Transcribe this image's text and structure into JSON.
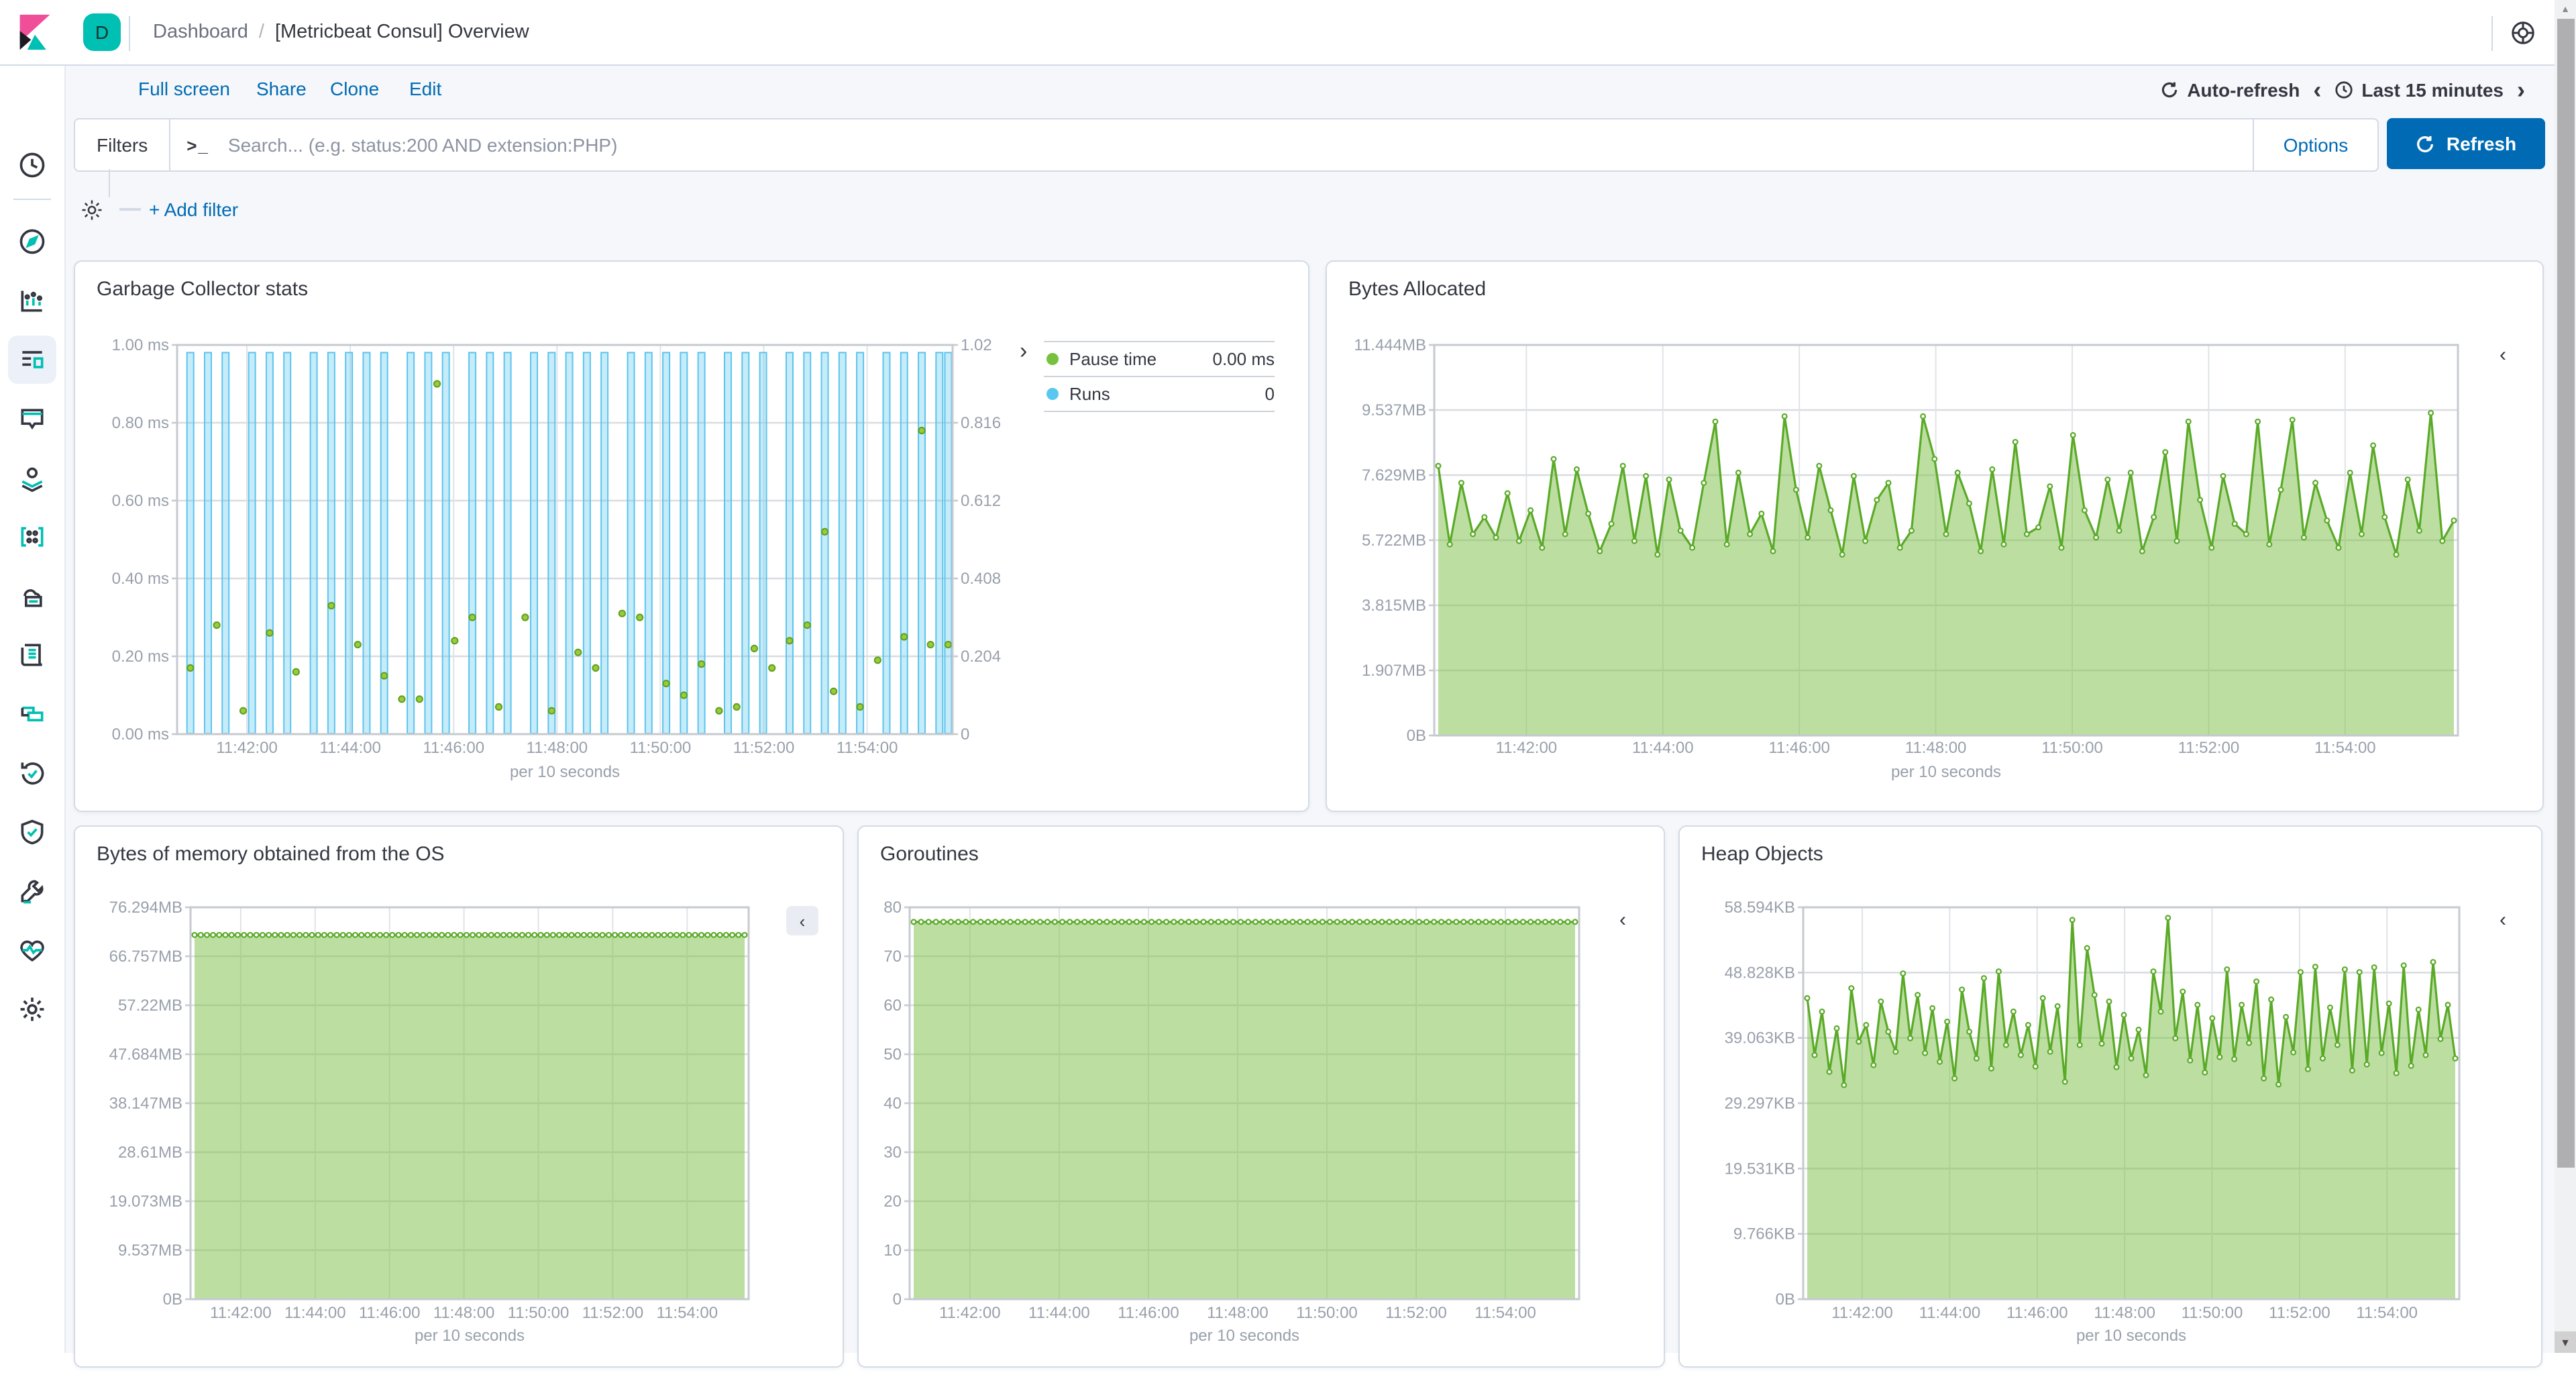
{
  "header": {
    "badge": "D",
    "breadcrumb": {
      "section": "Dashboard",
      "separator": "/",
      "current": "[Metricbeat Consul] Overview"
    }
  },
  "sidebar": {
    "items": [
      {
        "name": "recently-viewed",
        "icon": "clock"
      },
      {
        "name": "discover",
        "icon": "compass"
      },
      {
        "name": "visualize",
        "icon": "bar-chart"
      },
      {
        "name": "dashboard",
        "icon": "dashboard-grid",
        "selected": true
      },
      {
        "name": "canvas",
        "icon": "canvas-frame"
      },
      {
        "name": "maps",
        "icon": "map-pin-layers"
      },
      {
        "name": "machine-learning",
        "icon": "ml-dots"
      },
      {
        "name": "infrastructure",
        "icon": "infra-cloud"
      },
      {
        "name": "logs",
        "icon": "logs-scroll"
      },
      {
        "name": "apm",
        "icon": "apm-squares"
      },
      {
        "name": "uptime",
        "icon": "uptime-clock-arrow"
      },
      {
        "name": "siem",
        "icon": "shield"
      },
      {
        "name": "dev-tools",
        "icon": "wrench"
      },
      {
        "name": "stack-monitoring",
        "icon": "heartbeat"
      },
      {
        "name": "management",
        "icon": "gear"
      }
    ]
  },
  "toolbar": {
    "links": [
      {
        "name": "full-screen",
        "label": "Full screen"
      },
      {
        "name": "share",
        "label": "Share"
      },
      {
        "name": "clone",
        "label": "Clone"
      },
      {
        "name": "edit",
        "label": "Edit"
      }
    ],
    "auto_refresh": "Auto-refresh",
    "time_range": "Last 15 minutes"
  },
  "filter_bar": {
    "filters_label": "Filters",
    "search_placeholder": "Search... (e.g. status:200 AND extension:PHP)",
    "options_label": "Options",
    "refresh_label": "Refresh",
    "add_filter_label": "+ Add filter"
  },
  "icons": {
    "prompt": ">_",
    "prev_chevron": "‹",
    "next_chevron": "›",
    "legend_expand": "›",
    "legend_collapse": "‹",
    "scroll_up": "▲",
    "scroll_down": "▼",
    "refresh_glyph": "⟳"
  },
  "colors": {
    "accent_blue": "#006BB4",
    "brand_teal": "#00BFB3",
    "brand_pink": "#F04E98",
    "dark_text": "#343741",
    "muted_text": "#69707D",
    "axis_text": "#98A0AB",
    "panel_border": "#D3DAE6",
    "page_bg": "#F5F7FA",
    "bar_stroke": "#5BC5EE",
    "bar_fill": "rgba(91,197,238,0.35)",
    "green_line": "#5AAA28",
    "green_area": "rgba(122,191,67,0.5)",
    "green_dot_fill": "#9ACB3C",
    "green_dot_stroke": "#5F9E1F"
  },
  "chart_data": [
    {
      "type": "bar",
      "title": "Garbage Collector stats",
      "xlabel": "per 10 seconds",
      "x_ticks": [
        "11:42:00",
        "11:44:00",
        "11:46:00",
        "11:48:00",
        "11:50:00",
        "11:52:00",
        "11:54:00"
      ],
      "y_ticks": [
        "1.00 ms",
        "0.80 ms",
        "0.60 ms",
        "0.40 ms",
        "0.20 ms",
        "0.00 ms"
      ],
      "y_max": 1.0,
      "y_ticks_right": [
        "1.02",
        "0.816",
        "0.612",
        "0.408",
        "0.204",
        "0"
      ],
      "y_max_right": 1.02,
      "num_slots": 88,
      "runs": {
        "bar_value": 1,
        "bar_slots": [
          1,
          3,
          5,
          8,
          10,
          12,
          15,
          17,
          19,
          21,
          23,
          26,
          28,
          30,
          33,
          35,
          37,
          40,
          42,
          44,
          46,
          48,
          51,
          53,
          55,
          57,
          59,
          62,
          64,
          66,
          69,
          71,
          73,
          75,
          77,
          80,
          82,
          84,
          86,
          87
        ]
      },
      "pause_time_points_ms": [
        [
          1,
          0.17
        ],
        [
          4,
          0.28
        ],
        [
          7,
          0.06
        ],
        [
          10,
          0.26
        ],
        [
          13,
          0.16
        ],
        [
          17,
          0.33
        ],
        [
          20,
          0.23
        ],
        [
          23,
          0.15
        ],
        [
          25,
          0.09
        ],
        [
          27,
          0.09
        ],
        [
          29,
          0.9
        ],
        [
          31,
          0.24
        ],
        [
          33,
          0.3
        ],
        [
          36,
          0.07
        ],
        [
          39,
          0.3
        ],
        [
          42,
          0.06
        ],
        [
          45,
          0.21
        ],
        [
          47,
          0.17
        ],
        [
          50,
          0.31
        ],
        [
          52,
          0.3
        ],
        [
          55,
          0.13
        ],
        [
          57,
          0.1
        ],
        [
          59,
          0.18
        ],
        [
          61,
          0.06
        ],
        [
          63,
          0.07
        ],
        [
          65,
          0.22
        ],
        [
          67,
          0.17
        ],
        [
          69,
          0.24
        ],
        [
          71,
          0.28
        ],
        [
          73,
          0.52
        ],
        [
          74,
          0.11
        ],
        [
          77,
          0.07
        ],
        [
          79,
          0.19
        ],
        [
          82,
          0.25
        ],
        [
          84,
          0.78
        ],
        [
          85,
          0.23
        ],
        [
          87,
          0.23
        ]
      ],
      "legend": [
        {
          "label": "Pause time",
          "value": "0.00 ms",
          "color": "#77C13E"
        },
        {
          "label": "Runs",
          "value": "0",
          "color": "#59C7F0"
        }
      ]
    },
    {
      "type": "area",
      "title": "Bytes Allocated",
      "xlabel": "per 10 seconds",
      "x_ticks": [
        "11:42:00",
        "11:44:00",
        "11:46:00",
        "11:48:00",
        "11:50:00",
        "11:52:00",
        "11:54:00"
      ],
      "y_ticks": [
        "11.444MB",
        "9.537MB",
        "7.629MB",
        "5.722MB",
        "3.815MB",
        "1.907MB",
        "0B"
      ],
      "y_max": 11.444,
      "unit": "MB",
      "values": [
        7.9,
        5.6,
        7.4,
        5.9,
        6.4,
        5.8,
        7.1,
        5.7,
        6.6,
        5.5,
        8.1,
        5.9,
        7.8,
        6.5,
        5.4,
        6.2,
        7.9,
        5.7,
        7.6,
        5.3,
        7.5,
        6.0,
        5.5,
        7.4,
        9.2,
        5.6,
        7.7,
        5.9,
        6.5,
        5.4,
        9.35,
        7.2,
        5.8,
        7.9,
        6.6,
        5.3,
        7.6,
        5.7,
        6.9,
        7.4,
        5.5,
        6.0,
        9.35,
        8.1,
        5.9,
        7.7,
        6.8,
        5.4,
        7.8,
        5.6,
        8.6,
        5.9,
        6.1,
        7.3,
        5.5,
        8.8,
        6.6,
        5.8,
        7.5,
        6.0,
        7.7,
        5.4,
        6.4,
        8.3,
        5.7,
        9.2,
        6.9,
        5.5,
        7.6,
        6.2,
        5.9,
        9.2,
        5.6,
        7.2,
        9.25,
        5.8,
        7.4,
        6.3,
        5.5,
        7.7,
        5.9,
        8.5,
        6.4,
        5.3,
        7.5,
        6.0,
        9.45,
        5.7,
        6.3
      ]
    },
    {
      "type": "area",
      "title": "Bytes of memory obtained from the OS",
      "xlabel": "per 10 seconds",
      "x_ticks": [
        "11:42:00",
        "11:44:00",
        "11:46:00",
        "11:48:00",
        "11:50:00",
        "11:52:00",
        "11:54:00"
      ],
      "y_ticks": [
        "76.294MB",
        "66.757MB",
        "57.22MB",
        "47.684MB",
        "38.147MB",
        "28.61MB",
        "19.073MB",
        "9.537MB",
        "0B"
      ],
      "y_max": 76.294,
      "unit": "MB",
      "value_constant": 70.9,
      "num_points": 90
    },
    {
      "type": "area",
      "title": "Goroutines",
      "xlabel": "per 10 seconds",
      "x_ticks": [
        "11:42:00",
        "11:44:00",
        "11:46:00",
        "11:48:00",
        "11:50:00",
        "11:52:00",
        "11:54:00"
      ],
      "y_ticks": [
        "80",
        "70",
        "60",
        "50",
        "40",
        "30",
        "20",
        "10",
        "0"
      ],
      "y_max": 80,
      "unit": "",
      "value_constant": 77,
      "num_points": 90
    },
    {
      "type": "area",
      "title": "Heap Objects",
      "xlabel": "per 10 seconds",
      "x_ticks": [
        "11:42:00",
        "11:44:00",
        "11:46:00",
        "11:48:00",
        "11:50:00",
        "11:52:00",
        "11:54:00"
      ],
      "y_ticks": [
        "58.594KB",
        "48.828KB",
        "39.063KB",
        "29.297KB",
        "19.531KB",
        "9.766KB",
        "0B"
      ],
      "y_max": 58.594,
      "unit": "KB",
      "values": [
        45,
        36.5,
        43,
        34,
        40.5,
        32,
        46.5,
        38.5,
        41,
        35,
        44.5,
        40,
        37,
        48.7,
        39,
        45.5,
        36.8,
        43.5,
        35.5,
        41.5,
        33,
        46.3,
        40,
        36,
        48,
        34.5,
        49,
        38,
        43,
        36.5,
        41,
        34.8,
        45,
        37,
        43.8,
        32.5,
        56.7,
        38,
        52.5,
        45.5,
        38.2,
        44.5,
        34.7,
        42.5,
        36,
        40.3,
        33.5,
        49,
        43,
        57,
        39,
        46,
        35.7,
        44,
        33.9,
        42,
        36.2,
        49.3,
        35.9,
        44,
        38.3,
        47.5,
        33,
        44.8,
        32.1,
        42.2,
        36.9,
        48.9,
        34.4,
        49.7,
        36,
        43.6,
        38,
        49.3,
        34.2,
        48.9,
        35.1,
        49.6,
        36.8,
        44.2,
        33.8,
        49.9,
        34.9,
        43.3,
        36.5,
        50.4,
        38.9,
        44,
        36
      ]
    }
  ]
}
